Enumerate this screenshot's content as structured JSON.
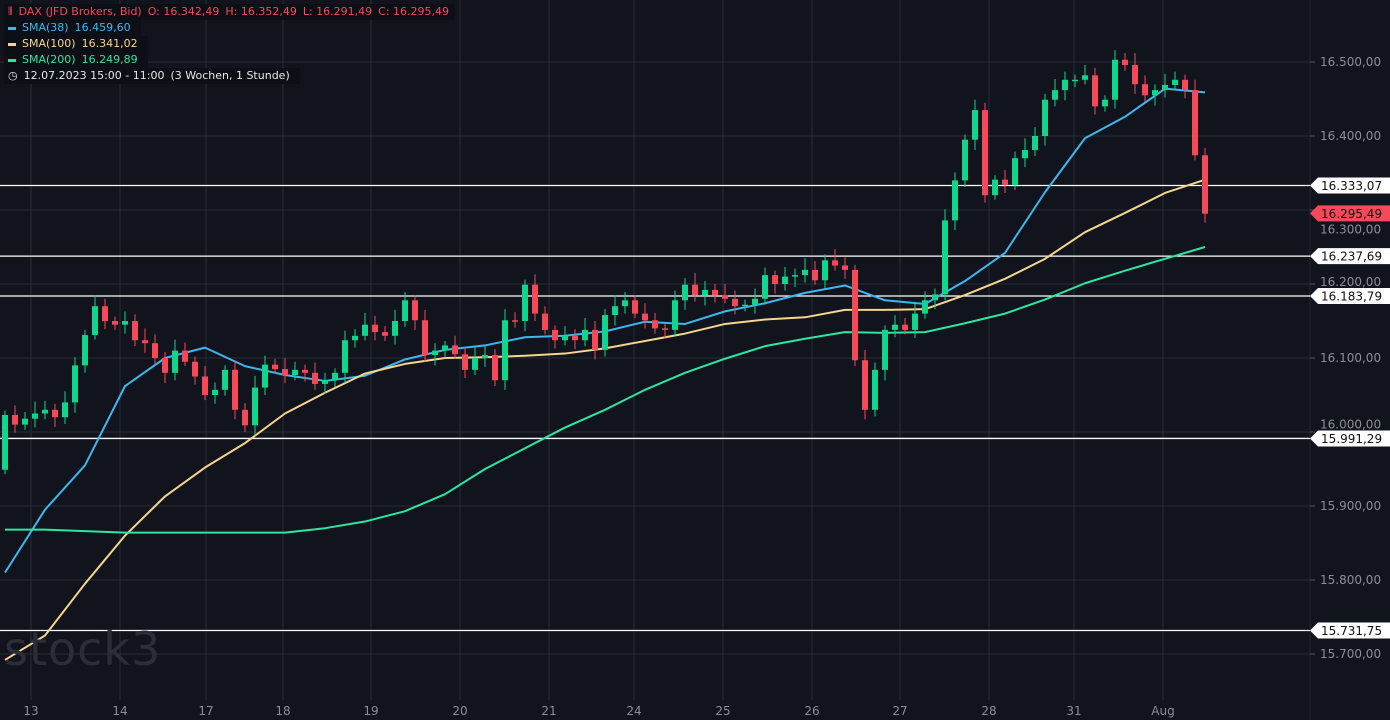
{
  "legend": {
    "instrument": "DAX (JFD Brokers, Bid)",
    "open": "O: 16.342,49",
    "high": "H: 16.352,49",
    "low": "L: 16.291,49",
    "close": "C: 16.295,49",
    "sma38": {
      "label": "SMA(38)",
      "value": "16.459,60",
      "color": "#3db7f0"
    },
    "sma100": {
      "label": "SMA(100)",
      "value": "16.341,02",
      "color": "#f6d58e"
    },
    "sma200": {
      "label": "SMA(200)",
      "value": "16.249,89",
      "color": "#2de6a0"
    },
    "range": "12.07.2023 15:00 - 11:00",
    "period": "(3 Wochen, 1 Stunde)"
  },
  "watermark": "stock3",
  "chart_data": {
    "type": "candlestick",
    "interval": "1 Stunde",
    "ylim": [
      15660,
      16560
    ],
    "grid": true,
    "colors": {
      "up": "#0fd68c",
      "down": "#f5495a",
      "background": "#11141c",
      "grid": "#2a2d36"
    },
    "x_tick_labels": [
      "13",
      "14",
      "17",
      "18",
      "19",
      "20",
      "21",
      "24",
      "25",
      "26",
      "27",
      "28",
      "31",
      "Aug"
    ],
    "y_tick_labels": [
      "16.500,00",
      "16.400,00",
      "16.300,00",
      "16.200,00",
      "16.100,00",
      "16.000,00",
      "15.900,00",
      "15.800,00",
      "15.700,00"
    ],
    "y_ticks": [
      16500,
      16400,
      16300,
      16200,
      16100,
      16000,
      15900,
      15800,
      15700
    ],
    "first_open": 15949,
    "closes": [
      16023,
      16010,
      16018,
      16025,
      16030,
      16020,
      16040,
      16090,
      16131,
      16170,
      16150,
      16145,
      16150,
      16124,
      16120,
      16100,
      16080,
      16110,
      16095,
      16075,
      16050,
      16057,
      16084,
      16030,
      16009,
      16060,
      16091,
      16085,
      16077,
      16084,
      16080,
      16065,
      16070,
      16080,
      16124,
      16130,
      16145,
      16135,
      16130,
      16150,
      16178,
      16151,
      16104,
      16110,
      16117,
      16105,
      16084,
      16100,
      16104,
      16070,
      16151,
      16150,
      16199,
      16160,
      16138,
      16124,
      16130,
      16124,
      16138,
      16111,
      16158,
      16170,
      16178,
      16160,
      16151,
      16140,
      16138,
      16178,
      16199,
      16185,
      16192,
      16185,
      16180,
      16170,
      16172,
      16180,
      16212,
      16200,
      16210,
      16212,
      16219,
      16205,
      16232,
      16225,
      16219,
      16097,
      16030,
      16084,
      16138,
      16145,
      16138,
      16160,
      16178,
      16186,
      16286,
      16340,
      16395,
      16435,
      16320,
      16341,
      16334,
      16370,
      16381,
      16400,
      16449,
      16462,
      16476,
      16476,
      16482,
      16440,
      16449,
      16503,
      16496,
      16470,
      16455,
      16462,
      16469,
      16476,
      16462,
      16374,
      16295
    ],
    "series": [
      {
        "name": "SMA(38)",
        "color": "#3db7f0",
        "values": [
          15810,
          15895,
          15955,
          16062,
          16100,
          16114,
          16089,
          16077,
          16069,
          16076,
          16098,
          16111,
          16117,
          16128,
          16130,
          16136,
          16149,
          16146,
          16163,
          16174,
          16188,
          16198,
          16178,
          16173,
          16204,
          16242,
          16324,
          16397,
          16426,
          16464,
          16459
        ]
      },
      {
        "name": "SMA(100)",
        "color": "#f6d58e",
        "values": [
          15692,
          15725,
          15795,
          15860,
          15913,
          15952,
          15985,
          16025,
          16053,
          16079,
          16092,
          16100,
          16101,
          16103,
          16106,
          16113,
          16123,
          16133,
          16146,
          16152,
          16155,
          16165,
          16165,
          16166,
          16185,
          16207,
          16234,
          16270,
          16296,
          16323,
          16341
        ]
      },
      {
        "name": "SMA(200)",
        "color": "#2de6a0",
        "values": [
          15868,
          15868,
          15866,
          15864,
          15864,
          15864,
          15864,
          15864,
          15870,
          15879,
          15893,
          15916,
          15950,
          15978,
          16006,
          16030,
          16057,
          16080,
          16099,
          16116,
          16126,
          16135,
          16134,
          16135,
          16147,
          16160,
          16179,
          16201,
          16218,
          16234,
          16250
        ]
      }
    ],
    "horizontal_lines": [
      {
        "value": 16333.07,
        "label": "16.333,07"
      },
      {
        "value": 16237.69,
        "label": "16.237,69"
      },
      {
        "value": 16183.79,
        "label": "16.183,79"
      },
      {
        "value": 15991.29,
        "label": "15.991,29"
      },
      {
        "value": 15731.75,
        "label": "15.731,75"
      }
    ],
    "last_price": {
      "value": 16295.49,
      "label": "16.295,49",
      "color": "#f5495a"
    }
  }
}
